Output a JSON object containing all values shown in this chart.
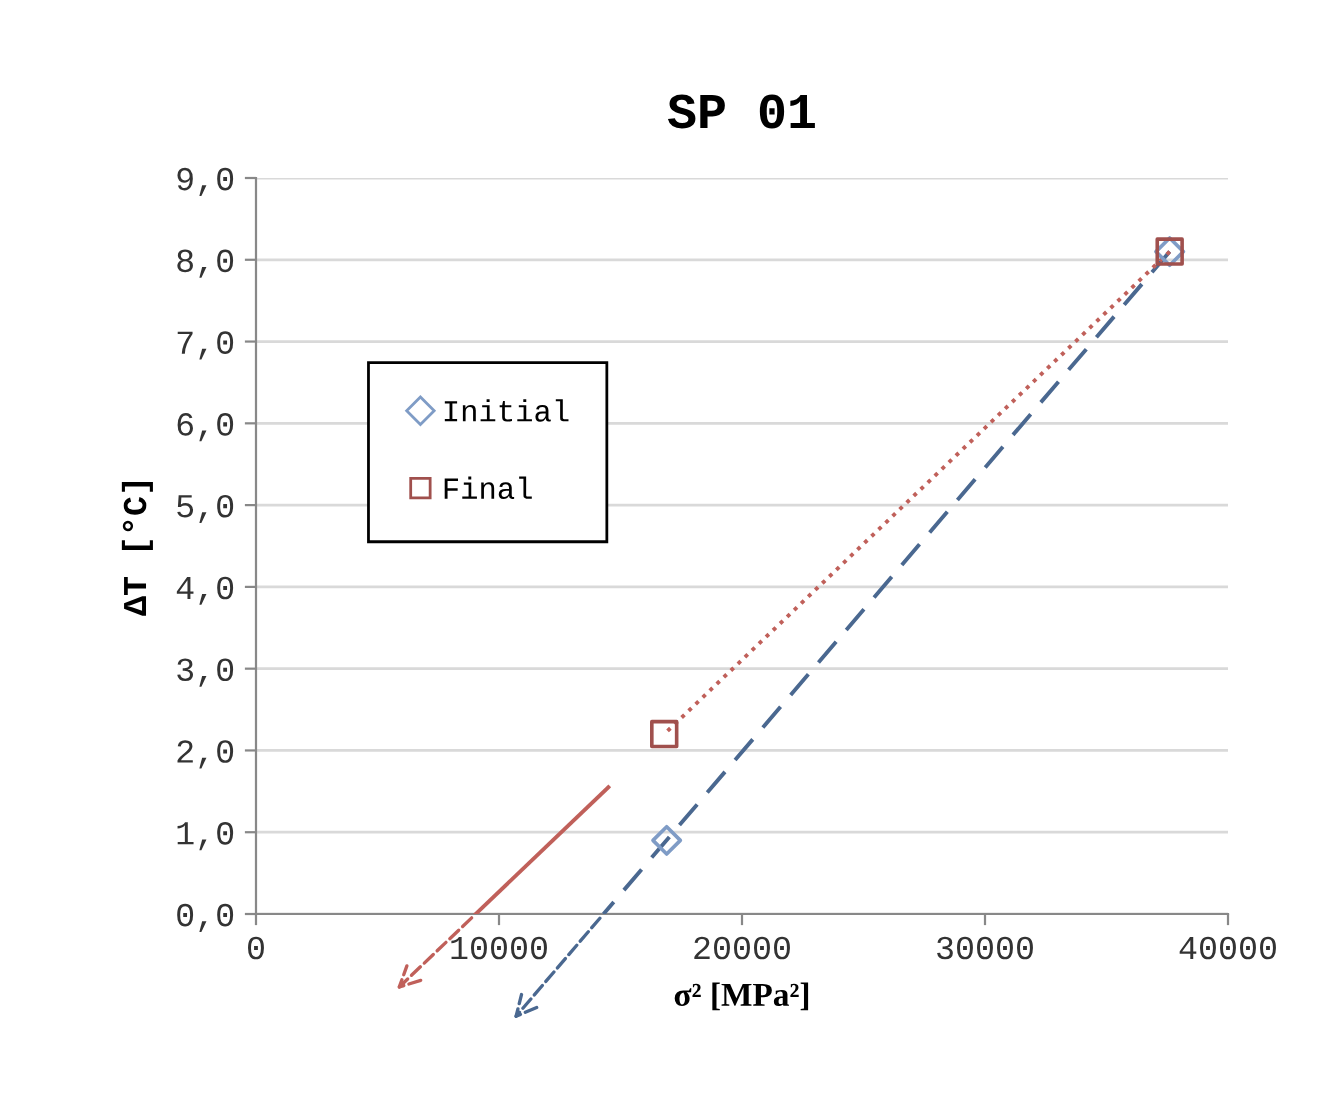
{
  "chart_data": {
    "type": "scatter",
    "title": "SP 01",
    "xlabel": "σ² [MPa²]",
    "ylabel": "ΔT [°C]",
    "series": [
      {
        "name": "Initial",
        "color": "#7f9cc6",
        "marker": "diamond",
        "x": [
          16900,
          37600
        ],
        "values": [
          0.9,
          8.1
        ]
      },
      {
        "name": "Final",
        "color": "#a0504d",
        "marker": "square",
        "x": [
          16800,
          37600
        ],
        "values": [
          2.2,
          8.1
        ]
      },
      {
        "type": "line",
        "color": "#4a6890",
        "line_style": "dashed",
        "marker": "none",
        "x": [
          37600,
          14300
        ],
        "values": [
          8.1,
          0.0
        ]
      },
      {
        "type": "line",
        "color": "#c0605a",
        "line_style": "dotted",
        "marker": "none",
        "x": [
          37600,
          16800
        ],
        "values": [
          8.1,
          2.2
        ]
      },
      {
        "type": "line",
        "color": "#c0605a",
        "line_style": "solid",
        "marker": "none",
        "x": [
          14500,
          9040
        ],
        "values": [
          1.55,
          0.0
        ]
      }
    ],
    "xlim": [
      0,
      40000
    ],
    "xticks": [
      0,
      10000,
      20000,
      30000,
      40000
    ],
    "ylim": [
      0,
      9
    ],
    "yticks": [
      {
        "value": 0,
        "label": "0,0"
      },
      {
        "value": 1,
        "label": "1,0"
      },
      {
        "value": 2,
        "label": "2,0"
      },
      {
        "value": 3,
        "label": "3,0"
      },
      {
        "value": 4,
        "label": "4,0"
      },
      {
        "value": 5,
        "label": "5,0"
      },
      {
        "value": 6,
        "label": "6,0"
      },
      {
        "value": 7,
        "label": "7,0"
      },
      {
        "value": 8,
        "label": "8,0"
      },
      {
        "value": 9,
        "label": "9,0"
      }
    ],
    "grid": "y",
    "legend": "top left"
  }
}
